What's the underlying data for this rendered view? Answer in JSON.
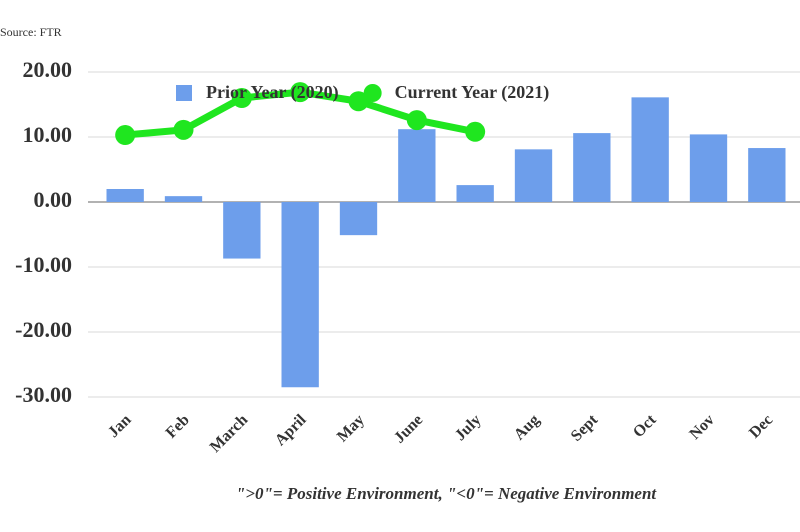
{
  "chart_data": {
    "type": "bar",
    "source": "Source: FTR",
    "footnote": "\">0\"= Positive Environment, \"<0\"= Negative Environment",
    "categories": [
      "Jan",
      "Feb",
      "March",
      "April",
      "May",
      "June",
      "July",
      "Aug",
      "Sept",
      "Oct",
      "Nov",
      "Dec"
    ],
    "series": [
      {
        "name": "Prior Year (2020)",
        "type": "bar",
        "color": "#6d9eeb",
        "values": [
          2.0,
          0.9,
          -8.7,
          -28.5,
          -5.1,
          11.2,
          2.6,
          8.1,
          10.6,
          16.1,
          10.4,
          8.3
        ]
      },
      {
        "name": "Current Year (2021)",
        "type": "line",
        "color": "#1fe61f",
        "values": [
          10.3,
          11.1,
          16.0,
          16.9,
          15.5,
          12.6,
          10.8,
          null,
          null,
          null,
          null,
          null
        ]
      }
    ],
    "ylim": [
      -30,
      20
    ],
    "yticks": [
      {
        "value": -30,
        "label": "-30.00"
      },
      {
        "value": -20,
        "label": "-20.00"
      },
      {
        "value": -10,
        "label": "-10.00"
      },
      {
        "value": 0,
        "label": "0.00"
      },
      {
        "value": 10,
        "label": "10.00"
      },
      {
        "value": 20,
        "label": "20.00"
      }
    ],
    "grid": true
  }
}
